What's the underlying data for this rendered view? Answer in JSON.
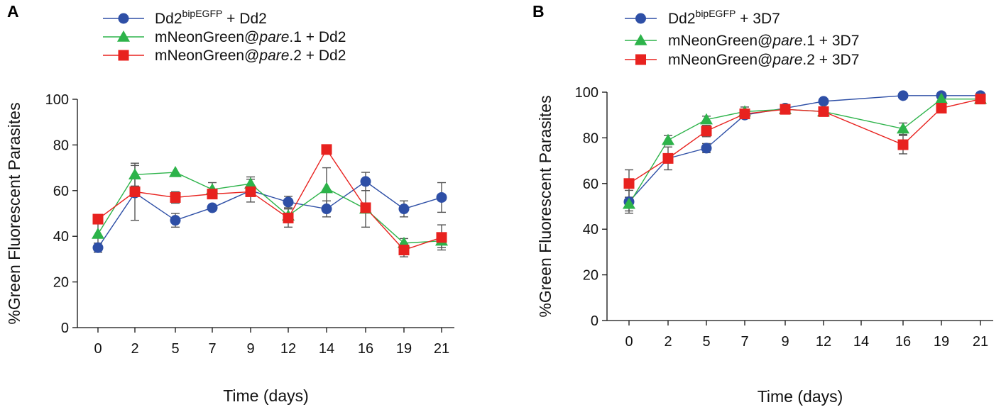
{
  "chart_data": [
    {
      "panel_label": "A",
      "type": "line",
      "xlabel": "Time (days)",
      "ylabel": "%Green Fluorescent Parasites",
      "categories": [
        "0",
        "2",
        "5",
        "7",
        "9",
        "12",
        "14",
        "16",
        "19",
        "21"
      ],
      "yticks": [
        "0",
        "20",
        "40",
        "60",
        "80",
        "100"
      ],
      "ylim": [
        0,
        100
      ],
      "series": [
        {
          "name_main": "Dd2",
          "name_sup": "bipEGFP",
          "name_rest": " + Dd2",
          "marker": "circle",
          "color": "#2e4fa6",
          "values": [
            35,
            59,
            47,
            52.5,
            60,
            55,
            52,
            64,
            52,
            57
          ],
          "errors": [
            2,
            12,
            3,
            0,
            5,
            2.5,
            3.5,
            4,
            3.5,
            6.5
          ]
        },
        {
          "name_main": "mNeonGreen@",
          "name_italic": "pare",
          "name_rest": ".1 + Dd2",
          "marker": "triangle",
          "color": "#2db34a",
          "values": [
            41,
            67,
            68,
            60.5,
            63,
            49,
            61,
            52,
            37,
            38
          ],
          "errors": [
            7,
            5,
            0,
            3,
            3,
            3,
            9,
            8,
            2,
            3
          ]
        },
        {
          "name_main": "mNeonGreen@",
          "name_italic": "pare",
          "name_rest": ".2 + Dd2",
          "marker": "square",
          "color": "#e8221f",
          "values": [
            47.5,
            59.5,
            57,
            58.5,
            59.5,
            48,
            78,
            52.5,
            34,
            39.5
          ],
          "errors": [
            2,
            2,
            2.5,
            2,
            2,
            4,
            0,
            1.5,
            3,
            5.5
          ]
        }
      ]
    },
    {
      "panel_label": "B",
      "type": "line",
      "xlabel": "Time (days)",
      "ylabel": "%Green Fluorescent Parasites",
      "categories": [
        "0",
        "2",
        "5",
        "7",
        "9",
        "12",
        "14",
        "16",
        "19",
        "21"
      ],
      "yticks": [
        "0",
        "20",
        "40",
        "60",
        "80",
        "100"
      ],
      "ylim": [
        0,
        100
      ],
      "series": [
        {
          "name_main": "Dd2",
          "name_sup": "bipEGFP",
          "name_rest": " + 3D7",
          "marker": "circle",
          "color": "#2e4fa6",
          "values": [
            52,
            71,
            75.5,
            90,
            93,
            96,
            null,
            98.5,
            98.5,
            98.5
          ],
          "errors": [
            5,
            2,
            2,
            1,
            1,
            1,
            0,
            1,
            1,
            1
          ]
        },
        {
          "name_main": "mNeonGreen@",
          "name_italic": "pare",
          "name_rest": ".1 + 3D7",
          "marker": "triangle",
          "color": "#2db34a",
          "values": [
            51,
            79,
            88,
            91.5,
            92.5,
            91.5,
            null,
            84,
            97,
            97
          ],
          "errors": [
            3,
            2,
            1.5,
            2,
            1,
            1,
            0,
            2.5,
            1,
            1
          ]
        },
        {
          "name_main": "mNeonGreen@",
          "name_italic": "pare",
          "name_rest": ".2 + 3D7",
          "marker": "square",
          "color": "#e8221f",
          "values": [
            60,
            71,
            83,
            90.5,
            92.5,
            91.5,
            null,
            77,
            93,
            97
          ],
          "errors": [
            6,
            5,
            2.5,
            2,
            1,
            1,
            0,
            4,
            1,
            1
          ]
        }
      ]
    }
  ]
}
